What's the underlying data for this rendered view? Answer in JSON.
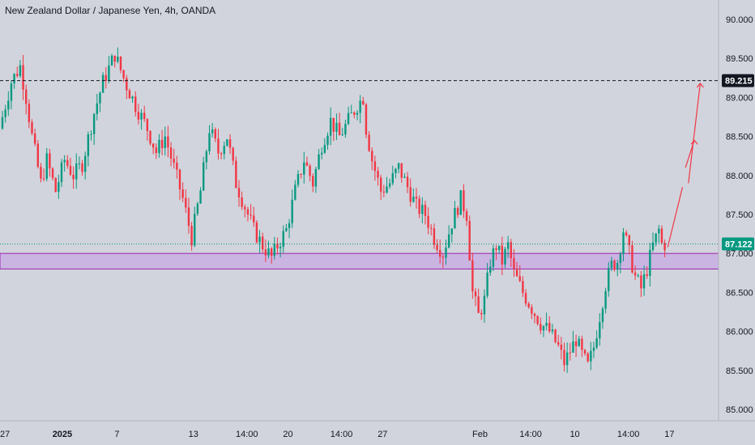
{
  "header": {
    "title": "New Zealand Dollar / Japanese Yen, 4h, OANDA"
  },
  "colors": {
    "background": "#d1d4dc",
    "bullish": "#089981",
    "bearish": "#f23645",
    "zone_fill": "#c9aee3",
    "zone_border": "#9c27b0",
    "current_price_badge": "#089981",
    "resistance_badge": "#131722",
    "arrow": "#f23645"
  },
  "chart_data": {
    "type": "candlestick",
    "symbol": "New Zealand Dollar / Japanese Yen",
    "timeframe": "4h",
    "source": "OANDA",
    "ylim": [
      85.0,
      90.0
    ],
    "y_ticks": [
      "90.000",
      "89.500",
      "89.000",
      "88.500",
      "88.000",
      "87.500",
      "87.000",
      "86.500",
      "86.000",
      "85.500",
      "85.000"
    ],
    "x_ticks": [
      {
        "label": "27",
        "i": 0
      },
      {
        "label": "2025",
        "i": 18
      },
      {
        "label": "7",
        "i": 39
      },
      {
        "label": "13",
        "i": 64
      },
      {
        "label": "14:00",
        "i": 80
      },
      {
        "label": "20",
        "i": 96
      },
      {
        "label": "14:00",
        "i": 112
      },
      {
        "label": "27",
        "i": 128
      },
      {
        "label": "Feb",
        "i": 160
      },
      {
        "label": "14:00",
        "i": 176
      },
      {
        "label": "10",
        "i": 193
      },
      {
        "label": "14:00",
        "i": 209
      },
      {
        "label": "17",
        "i": 225
      }
    ],
    "levels": {
      "resistance": {
        "value": 89.215,
        "label": "89.215"
      },
      "current": {
        "value": 87.122,
        "label": "87.122"
      }
    },
    "zone": {
      "top": 87.0,
      "bottom": 86.8
    },
    "projection": {
      "segments": [
        {
          "from": {
            "i": 225,
            "price": 87.08
          },
          "to": {
            "i": 230,
            "price": 87.85
          }
        },
        {
          "from": {
            "i": 231,
            "price": 88.1
          },
          "to": {
            "i": 234,
            "price": 88.45
          }
        },
        {
          "from": {
            "i": 232,
            "price": 87.9
          },
          "to": {
            "i": 236,
            "price": 89.18
          }
        }
      ]
    },
    "anchors": [
      {
        "i": 0,
        "p": 88.6
      },
      {
        "i": 4,
        "p": 89.2
      },
      {
        "i": 7,
        "p": 89.4
      },
      {
        "i": 9,
        "p": 89.0
      },
      {
        "i": 11,
        "p": 88.5
      },
      {
        "i": 14,
        "p": 87.9
      },
      {
        "i": 16,
        "p": 88.2
      },
      {
        "i": 19,
        "p": 87.8
      },
      {
        "i": 22,
        "p": 88.2
      },
      {
        "i": 25,
        "p": 88.0
      },
      {
        "i": 28,
        "p": 88.15
      },
      {
        "i": 32,
        "p": 88.8
      },
      {
        "i": 35,
        "p": 89.2
      },
      {
        "i": 39,
        "p": 89.55
      },
      {
        "i": 41,
        "p": 89.35
      },
      {
        "i": 43,
        "p": 89.15
      },
      {
        "i": 46,
        "p": 88.9
      },
      {
        "i": 50,
        "p": 88.6
      },
      {
        "i": 53,
        "p": 88.3
      },
      {
        "i": 56,
        "p": 88.5
      },
      {
        "i": 59,
        "p": 88.1
      },
      {
        "i": 62,
        "p": 87.7
      },
      {
        "i": 65,
        "p": 87.2
      },
      {
        "i": 68,
        "p": 87.8
      },
      {
        "i": 71,
        "p": 88.6
      },
      {
        "i": 74,
        "p": 88.3
      },
      {
        "i": 77,
        "p": 88.5
      },
      {
        "i": 80,
        "p": 87.9
      },
      {
        "i": 83,
        "p": 87.6
      },
      {
        "i": 86,
        "p": 87.3
      },
      {
        "i": 89,
        "p": 87.1
      },
      {
        "i": 92,
        "p": 86.95
      },
      {
        "i": 94,
        "p": 87.1
      },
      {
        "i": 97,
        "p": 87.3
      },
      {
        "i": 100,
        "p": 87.8
      },
      {
        "i": 103,
        "p": 88.2
      },
      {
        "i": 106,
        "p": 87.9
      },
      {
        "i": 109,
        "p": 88.4
      },
      {
        "i": 112,
        "p": 88.7
      },
      {
        "i": 115,
        "p": 88.5
      },
      {
        "i": 118,
        "p": 88.7
      },
      {
        "i": 121,
        "p": 88.9
      },
      {
        "i": 123,
        "p": 89.0
      },
      {
        "i": 124,
        "p": 88.6
      },
      {
        "i": 126,
        "p": 88.2
      },
      {
        "i": 129,
        "p": 87.8
      },
      {
        "i": 132,
        "p": 87.9
      },
      {
        "i": 135,
        "p": 88.1
      },
      {
        "i": 138,
        "p": 87.85
      },
      {
        "i": 141,
        "p": 87.6
      },
      {
        "i": 144,
        "p": 87.5
      },
      {
        "i": 147,
        "p": 87.2
      },
      {
        "i": 150,
        "p": 87.0
      },
      {
        "i": 153,
        "p": 87.4
      },
      {
        "i": 156,
        "p": 87.7
      },
      {
        "i": 158,
        "p": 87.5
      },
      {
        "i": 160,
        "p": 86.5
      },
      {
        "i": 162,
        "p": 86.2
      },
      {
        "i": 164,
        "p": 86.4
      },
      {
        "i": 166,
        "p": 86.9
      },
      {
        "i": 168,
        "p": 87.1
      },
      {
        "i": 170,
        "p": 86.9
      },
      {
        "i": 172,
        "p": 87.1
      },
      {
        "i": 174,
        "p": 86.75
      },
      {
        "i": 177,
        "p": 86.5
      },
      {
        "i": 180,
        "p": 86.3
      },
      {
        "i": 183,
        "p": 86.1
      },
      {
        "i": 186,
        "p": 86.0
      },
      {
        "i": 189,
        "p": 85.8
      },
      {
        "i": 191,
        "p": 85.6
      },
      {
        "i": 193,
        "p": 85.75
      },
      {
        "i": 195,
        "p": 85.9
      },
      {
        "i": 197,
        "p": 85.7
      },
      {
        "i": 199,
        "p": 85.55
      },
      {
        "i": 201,
        "p": 85.8
      },
      {
        "i": 203,
        "p": 86.2
      },
      {
        "i": 205,
        "p": 86.6
      },
      {
        "i": 207,
        "p": 86.85
      },
      {
        "i": 209,
        "p": 86.9
      },
      {
        "i": 211,
        "p": 87.3
      },
      {
        "i": 213,
        "p": 87.0
      },
      {
        "i": 215,
        "p": 86.7
      },
      {
        "i": 217,
        "p": 86.55
      },
      {
        "i": 219,
        "p": 86.8
      },
      {
        "i": 221,
        "p": 87.1
      },
      {
        "i": 223,
        "p": 87.3
      },
      {
        "i": 224,
        "p": 87.12
      }
    ],
    "grid": false
  }
}
